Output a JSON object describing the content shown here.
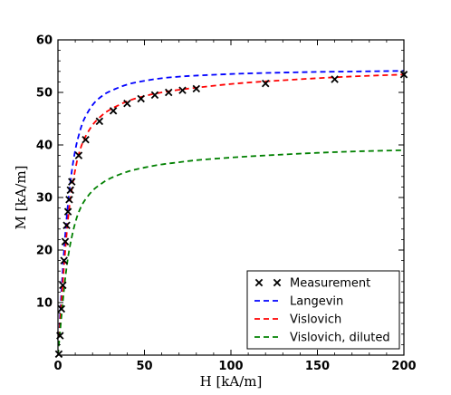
{
  "chart_data": {
    "type": "line",
    "xlabel": "H [kA/m]",
    "ylabel": "M [kA/m]",
    "xlim": [
      0,
      200
    ],
    "ylim": [
      0,
      60
    ],
    "x_ticks": [
      0,
      50,
      100,
      150,
      200
    ],
    "y_ticks": [
      10,
      20,
      30,
      40,
      50,
      60
    ],
    "grid": false,
    "legend_position": "bottom-right",
    "series": [
      {
        "name": "Measurement",
        "style": "marker-x",
        "color": "#000000",
        "x": [
          0.5,
          1.2,
          2.0,
          2.8,
          3.5,
          4.2,
          5.0,
          5.8,
          6.5,
          7.2,
          8.0,
          12.0,
          16.0,
          24.0,
          32.0,
          40.0,
          48.0,
          56.0,
          64.0,
          72.0,
          80.0,
          120.0,
          160.0,
          200.0
        ],
        "y": [
          0.2,
          3.7,
          8.8,
          13.3,
          18.0,
          21.6,
          24.7,
          27.3,
          29.6,
          31.4,
          33.0,
          38.0,
          41.0,
          44.5,
          46.5,
          47.9,
          48.8,
          49.5,
          50.0,
          50.4,
          50.7,
          51.7,
          52.5,
          53.4
        ]
      },
      {
        "name": "Langevin",
        "style": "dashed",
        "color": "#0000ff",
        "x": [
          0,
          2,
          4,
          6,
          8,
          10,
          12,
          15,
          20,
          25,
          30,
          40,
          50,
          60,
          70,
          80,
          100,
          120,
          150,
          175,
          200
        ],
        "y": [
          0,
          12.0,
          22.0,
          29.5,
          35.0,
          39.0,
          41.8,
          44.8,
          47.6,
          49.2,
          50.2,
          51.5,
          52.2,
          52.7,
          53.0,
          53.2,
          53.5,
          53.7,
          53.9,
          54.0,
          54.1
        ]
      },
      {
        "name": "Vislovich",
        "style": "dashed",
        "color": "#ff0000",
        "x": [
          0,
          2,
          4,
          6,
          8,
          10,
          12,
          15,
          20,
          25,
          30,
          40,
          50,
          60,
          70,
          80,
          100,
          120,
          150,
          175,
          200
        ],
        "y": [
          0,
          10.0,
          19.0,
          26.5,
          31.5,
          35.3,
          38.2,
          41.0,
          43.8,
          45.5,
          46.7,
          48.3,
          49.3,
          50.0,
          50.5,
          50.9,
          51.6,
          52.1,
          52.7,
          53.1,
          53.4
        ]
      },
      {
        "name": "Vislovich, diluted",
        "style": "dashed",
        "color": "#008000",
        "x": [
          0,
          2,
          4,
          6,
          8,
          10,
          12,
          15,
          20,
          25,
          30,
          40,
          50,
          60,
          70,
          80,
          100,
          120,
          150,
          175,
          200
        ],
        "y": [
          0,
          7.3,
          14.0,
          19.0,
          22.5,
          25.2,
          27.2,
          29.2,
          31.3,
          32.6,
          33.6,
          34.9,
          35.7,
          36.3,
          36.7,
          37.1,
          37.6,
          38.0,
          38.5,
          38.8,
          39.0
        ]
      }
    ]
  }
}
